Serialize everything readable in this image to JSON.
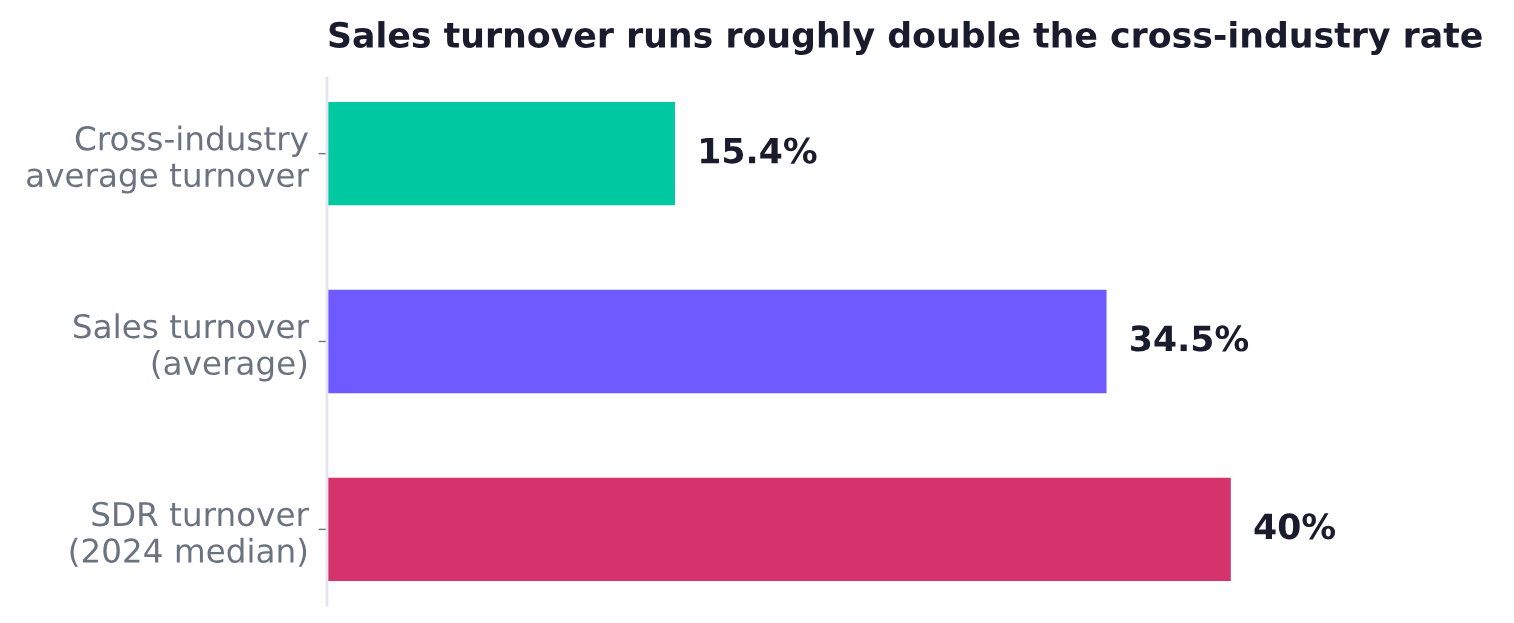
{
  "chart_data": {
    "type": "bar",
    "orientation": "horizontal",
    "title": "Sales turnover runs roughly double the cross-industry rate",
    "categories": [
      "Cross-industry\naverage turnover",
      "Sales turnover\n(average)",
      "SDR turnover\n(2024 median)"
    ],
    "values": [
      15.4,
      34.5,
      40
    ],
    "colors": [
      "#00c8a0",
      "#6e5aff",
      "#d5336b"
    ],
    "value_labels": [
      "15.4%",
      "34.5%",
      "40%"
    ],
    "tick_labels": "y"
  }
}
